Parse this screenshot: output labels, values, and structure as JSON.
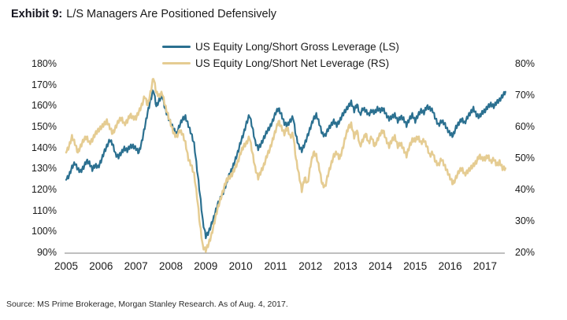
{
  "title": {
    "prefix": "Exhibit 9:",
    "text": "L/S Managers Are Positioned Defensively"
  },
  "source_note": "Source: MS Prime Brokerage, Morgan Stanley Research. As of Aug. 4, 2017.",
  "chart_data": {
    "type": "line",
    "title": "Exhibit 9: L/S Managers Are Positioned Defensively",
    "x_axis": {
      "start_year": 2005,
      "points_per_year": 12,
      "tick_labels": [
        "2005",
        "2006",
        "2007",
        "2008",
        "2009",
        "2010",
        "2011",
        "2012",
        "2013",
        "2014",
        "2015",
        "2016",
        "2017"
      ]
    },
    "left_axis": {
      "min": 90,
      "max": 180,
      "tick_labels": [
        "180%",
        "170%",
        "160%",
        "150%",
        "140%",
        "130%",
        "120%",
        "110%",
        "100%",
        "90%"
      ]
    },
    "right_axis": {
      "min": 20,
      "max": 80,
      "tick_labels": [
        "80%",
        "70%",
        "60%",
        "50%",
        "40%",
        "30%",
        "20%"
      ]
    },
    "grid": false,
    "legend_position": "top-center",
    "series": [
      {
        "name": "US Equity Long/Short Gross Leverage (LS)",
        "axis": "left",
        "color": "#2b7090",
        "unit": "%",
        "values": [
          125,
          127,
          131,
          133,
          130,
          129,
          131,
          134,
          133,
          130,
          132,
          131,
          134,
          138,
          141,
          144,
          142,
          137,
          136,
          138,
          140,
          139,
          141,
          141,
          140,
          138,
          143,
          150,
          157,
          163,
          168,
          160,
          163,
          165,
          159,
          155,
          152,
          149,
          147,
          151,
          154,
          155,
          151,
          147,
          142,
          130,
          118,
          105,
          98,
          100,
          104,
          108,
          113,
          116,
          119,
          123,
          127,
          130,
          134,
          138,
          143,
          147,
          152,
          156,
          150,
          143,
          140,
          142,
          145,
          148,
          150,
          153,
          157,
          159,
          156,
          152,
          151,
          153,
          155,
          146,
          141,
          139,
          142,
          146,
          150,
          154,
          156,
          152,
          147,
          146,
          149,
          151,
          153,
          151,
          153,
          156,
          158,
          160,
          162,
          158,
          161,
          156,
          159,
          158,
          156,
          158,
          157,
          159,
          158,
          159,
          156,
          154,
          155,
          156,
          153,
          155,
          154,
          151,
          154,
          156,
          153,
          156,
          158,
          157,
          160,
          159,
          158,
          154,
          151,
          153,
          152,
          149,
          147,
          146,
          150,
          152,
          154,
          152,
          155,
          157,
          159,
          156,
          155,
          157,
          158,
          160,
          161,
          160,
          162,
          163,
          165,
          167
        ]
      },
      {
        "name": "US Equity Long/Short Net Leverage (RS)",
        "axis": "right",
        "color": "#e5cc92",
        "unit": "%",
        "values": [
          52,
          54,
          57,
          55,
          52,
          54,
          56,
          57,
          55,
          56,
          58,
          59,
          60,
          61,
          62,
          60,
          58,
          60,
          62,
          63,
          61,
          62,
          64,
          63,
          63,
          65,
          67,
          70,
          67,
          71,
          76,
          71,
          70,
          71,
          67,
          64,
          61,
          58,
          57,
          59,
          58,
          55,
          50,
          48,
          45,
          38,
          29,
          22,
          21,
          23,
          26,
          30,
          34,
          37,
          40,
          43,
          44,
          45,
          47,
          49,
          52,
          54,
          55,
          57,
          52,
          47,
          44,
          46,
          48,
          51,
          53,
          56,
          59,
          62,
          60,
          58,
          60,
          57,
          58,
          50,
          45,
          40,
          44,
          42,
          48,
          52,
          51,
          47,
          42,
          41,
          45,
          48,
          51,
          52,
          50,
          53,
          57,
          60,
          61,
          57,
          59,
          54,
          56,
          58,
          55,
          57,
          54,
          56,
          58,
          59,
          56,
          54,
          56,
          57,
          54,
          55,
          53,
          51,
          54,
          56,
          56,
          57,
          55,
          56,
          54,
          51,
          52,
          49,
          48,
          50,
          48,
          46,
          44,
          42,
          44,
          46,
          47,
          45,
          46,
          47,
          48,
          49,
          51,
          50,
          50,
          51,
          49,
          50,
          48,
          49,
          47,
          47
        ]
      }
    ]
  }
}
